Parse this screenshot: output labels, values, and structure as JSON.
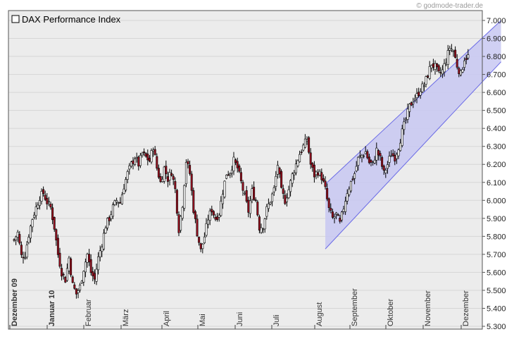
{
  "watermark": "© godmode-trader.de",
  "chart_data": {
    "type": "candlestick",
    "title": "DAX Performance Index",
    "ylim": [
      5300,
      7050
    ],
    "y_ticks": [
      "7.000",
      "6.900",
      "6.800",
      "6.700",
      "6.600",
      "6.500",
      "6.400",
      "6.300",
      "6.200",
      "6.100",
      "6.000",
      "5.900",
      "5.800",
      "5.700",
      "5.600",
      "5.500",
      "5.400",
      "5.300"
    ],
    "y_tick_values": [
      7000,
      6900,
      6800,
      6700,
      6600,
      6500,
      6400,
      6300,
      6200,
      6100,
      6000,
      5900,
      5800,
      5700,
      5600,
      5500,
      5400,
      5300
    ],
    "months": [
      {
        "label": "Dezember 09",
        "bold": true,
        "x": 2
      },
      {
        "label": "Januar 10",
        "bold": true,
        "x": 12
      },
      {
        "label": "Februar",
        "bold": false,
        "x": 33
      },
      {
        "label": "März",
        "bold": false,
        "x": 52
      },
      {
        "label": "April",
        "bold": false,
        "x": 74
      },
      {
        "label": "Mai",
        "bold": false,
        "x": 95
      },
      {
        "label": "Juni",
        "bold": false,
        "x": 116
      },
      {
        "label": "Juli",
        "bold": false,
        "x": 138
      },
      {
        "label": "August",
        "bold": false,
        "x": 160
      },
      {
        "label": "September",
        "bold": false,
        "x": 182
      },
      {
        "label": "Oktober",
        "bold": false,
        "x": 203
      },
      {
        "label": "November",
        "bold": false,
        "x": 225
      },
      {
        "label": "Dezember",
        "bold": false,
        "x": 246
      }
    ],
    "channel": {
      "upper": [
        [
          170,
          6090
        ],
        [
          266,
          7000
        ]
      ],
      "lower": [
        [
          170,
          5730
        ],
        [
          266,
          6770
        ]
      ]
    },
    "close_anchors": [
      [
        0,
        5780
      ],
      [
        2,
        5820
      ],
      [
        4,
        5690
      ],
      [
        6,
        5700
      ],
      [
        8,
        5810
      ],
      [
        10,
        5900
      ],
      [
        12,
        5960
      ],
      [
        14,
        6020
      ],
      [
        16,
        6040
      ],
      [
        18,
        5990
      ],
      [
        20,
        5960
      ],
      [
        22,
        5850
      ],
      [
        24,
        5700
      ],
      [
        26,
        5600
      ],
      [
        28,
        5560
      ],
      [
        30,
        5680
      ],
      [
        32,
        5530
      ],
      [
        34,
        5480
      ],
      [
        36,
        5520
      ],
      [
        38,
        5620
      ],
      [
        40,
        5700
      ],
      [
        42,
        5600
      ],
      [
        44,
        5560
      ],
      [
        46,
        5680
      ],
      [
        48,
        5760
      ],
      [
        50,
        5860
      ],
      [
        52,
        5900
      ],
      [
        54,
        5960
      ],
      [
        56,
        6000
      ],
      [
        58,
        5990
      ],
      [
        60,
        6080
      ],
      [
        62,
        6150
      ],
      [
        64,
        6200
      ],
      [
        66,
        6240
      ],
      [
        68,
        6200
      ],
      [
        70,
        6260
      ],
      [
        72,
        6240
      ],
      [
        74,
        6220
      ],
      [
        76,
        6300
      ],
      [
        78,
        6180
      ],
      [
        80,
        6100
      ],
      [
        82,
        6180
      ],
      [
        84,
        6120
      ],
      [
        86,
        6160
      ],
      [
        88,
        6060
      ],
      [
        90,
        5840
      ],
      [
        92,
        5980
      ],
      [
        94,
        6220
      ],
      [
        96,
        6150
      ],
      [
        98,
        5950
      ],
      [
        100,
        5820
      ],
      [
        102,
        5720
      ],
      [
        104,
        5800
      ],
      [
        106,
        5900
      ],
      [
        108,
        5950
      ],
      [
        110,
        5900
      ],
      [
        112,
        5930
      ],
      [
        114,
        6050
      ],
      [
        116,
        6150
      ],
      [
        118,
        6160
      ],
      [
        120,
        6220
      ],
      [
        122,
        6180
      ],
      [
        124,
        6100
      ],
      [
        126,
        6020
      ],
      [
        128,
        5940
      ],
      [
        130,
        6050
      ],
      [
        132,
        6000
      ],
      [
        134,
        5850
      ],
      [
        136,
        5860
      ],
      [
        138,
        5950
      ],
      [
        140,
        6000
      ],
      [
        142,
        6060
      ],
      [
        144,
        6200
      ],
      [
        146,
        6050
      ],
      [
        148,
        6000
      ],
      [
        150,
        6060
      ],
      [
        152,
        6140
      ],
      [
        154,
        6200
      ],
      [
        156,
        6260
      ],
      [
        158,
        6300
      ],
      [
        160,
        6340
      ],
      [
        162,
        6200
      ],
      [
        164,
        6140
      ],
      [
        166,
        6160
      ],
      [
        168,
        6130
      ],
      [
        170,
        6060
      ],
      [
        172,
        5950
      ],
      [
        174,
        5900
      ],
      [
        176,
        5920
      ],
      [
        178,
        5870
      ],
      [
        180,
        5960
      ],
      [
        182,
        6050
      ],
      [
        184,
        6100
      ],
      [
        186,
        6150
      ],
      [
        188,
        6230
      ],
      [
        190,
        6250
      ],
      [
        192,
        6270
      ],
      [
        194,
        6210
      ],
      [
        196,
        6200
      ],
      [
        198,
        6280
      ],
      [
        200,
        6230
      ],
      [
        202,
        6150
      ],
      [
        204,
        6200
      ],
      [
        206,
        6260
      ],
      [
        208,
        6240
      ],
      [
        210,
        6300
      ],
      [
        212,
        6380
      ],
      [
        214,
        6450
      ],
      [
        216,
        6520
      ],
      [
        218,
        6560
      ],
      [
        220,
        6580
      ],
      [
        222,
        6620
      ],
      [
        224,
        6640
      ],
      [
        226,
        6700
      ],
      [
        228,
        6760
      ],
      [
        230,
        6740
      ],
      [
        232,
        6700
      ],
      [
        234,
        6720
      ],
      [
        236,
        6780
      ],
      [
        238,
        6850
      ],
      [
        240,
        6830
      ],
      [
        242,
        6750
      ],
      [
        244,
        6700
      ],
      [
        246,
        6790
      ],
      [
        248,
        6800
      ]
    ],
    "bar_count": 249
  }
}
